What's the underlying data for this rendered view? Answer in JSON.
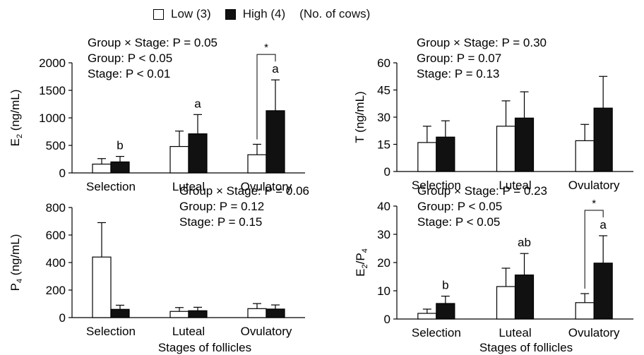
{
  "legend": {
    "low_label": "Low (3)",
    "high_label": "High (4)",
    "note": "(No. of cows)",
    "low_color": "#ffffff",
    "high_color": "#111111"
  },
  "chart_data": [
    {
      "type": "bar",
      "panel": "top-left",
      "ylabel_main": "E",
      "ylabel_sub": "2",
      "ylabel_tail": " (ng/mL)",
      "ylim": [
        0,
        2000
      ],
      "yticks": [
        "0",
        "500",
        "1000",
        "1500",
        "2000"
      ],
      "categories": [
        "Selection",
        "Luteal",
        "Ovulatory"
      ],
      "xlabel": "",
      "series": [
        {
          "name": "Low (3)",
          "values": [
            160,
            480,
            330
          ],
          "errors": [
            100,
            280,
            190
          ]
        },
        {
          "name": "High (4)",
          "values": [
            200,
            710,
            1130
          ],
          "errors": [
            100,
            350,
            560
          ]
        }
      ],
      "annotations": [
        "b",
        "a",
        "a"
      ],
      "significance": [
        null,
        null,
        "*"
      ],
      "stats": [
        "Group × Stage: P = 0.05",
        "Group: P < 0.05",
        "Stage: P < 0.01"
      ]
    },
    {
      "type": "bar",
      "panel": "top-right",
      "ylabel_main": "T (ng/mL)",
      "ylabel_sub": "",
      "ylabel_tail": "",
      "ylim": [
        0,
        60
      ],
      "yticks": [
        "0",
        "15",
        "30",
        "45",
        "60"
      ],
      "categories": [
        "Selection",
        "Luteal",
        "Ovulatory"
      ],
      "xlabel": "",
      "series": [
        {
          "name": "Low (3)",
          "values": [
            16,
            25,
            17
          ],
          "errors": [
            9,
            14,
            9
          ]
        },
        {
          "name": "High (4)",
          "values": [
            19,
            29.5,
            35
          ],
          "errors": [
            9,
            14.5,
            17.5
          ]
        }
      ],
      "annotations": [
        "",
        "",
        ""
      ],
      "significance": [
        null,
        null,
        null
      ],
      "stats": [
        "Group × Stage: P = 0.30",
        "Group: P = 0.07",
        "Stage: P = 0.13"
      ]
    },
    {
      "type": "bar",
      "panel": "bottom-left",
      "ylabel_main": "P",
      "ylabel_sub": "4",
      "ylabel_tail": " (ng/mL)",
      "ylim": [
        0,
        800
      ],
      "yticks": [
        "0",
        "200",
        "400",
        "600",
        "800"
      ],
      "categories": [
        "Selection",
        "Luteal",
        "Ovulatory"
      ],
      "xlabel": "Stages of follicles",
      "series": [
        {
          "name": "Low (3)",
          "values": [
            440,
            45,
            65
          ],
          "errors": [
            250,
            28,
            37
          ]
        },
        {
          "name": "High (4)",
          "values": [
            60,
            50,
            62
          ],
          "errors": [
            30,
            25,
            30
          ]
        }
      ],
      "annotations": [
        "",
        "",
        ""
      ],
      "significance": [
        null,
        null,
        null
      ],
      "stats": [
        "Group × Stage: P = 0.06",
        "Group: P = 0.12",
        "Stage: P = 0.15"
      ]
    },
    {
      "type": "bar",
      "panel": "bottom-right",
      "ylabel_main": "E",
      "ylabel_sub": "2",
      "ylabel_tail": "/P",
      "ylabel_sub2": "4",
      "ylim": [
        0,
        40
      ],
      "yticks": [
        "0",
        "10",
        "20",
        "30",
        "40"
      ],
      "categories": [
        "Selection",
        "Luteal",
        "Ovulatory"
      ],
      "xlabel": "Stages of follicles",
      "series": [
        {
          "name": "Low (3)",
          "values": [
            2,
            11.5,
            5.8
          ],
          "errors": [
            1.5,
            6.5,
            3.2
          ]
        },
        {
          "name": "High (4)",
          "values": [
            5.5,
            15.6,
            19.8
          ],
          "errors": [
            2.6,
            7.6,
            9.7
          ]
        }
      ],
      "annotations": [
        "b",
        "ab",
        "a"
      ],
      "significance": [
        null,
        null,
        "*"
      ],
      "stats": [
        "Group × Stage: P = 0.23",
        "Group: P < 0.05",
        "Stage: P < 0.05"
      ]
    }
  ]
}
